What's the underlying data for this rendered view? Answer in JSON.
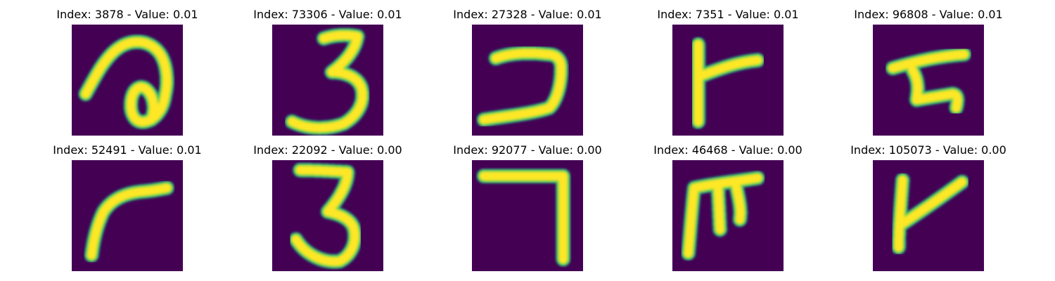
{
  "colors": {
    "background": "#440154",
    "stroke_edge": "#22a884",
    "stroke_mid": "#7ad151",
    "stroke_core": "#fde725"
  },
  "panels": [
    {
      "title": "Index: 3878 - Value: 0.01",
      "glyph": "g0"
    },
    {
      "title": "Index: 73306 - Value: 0.01",
      "glyph": "g1"
    },
    {
      "title": "Index: 27328 - Value: 0.01",
      "glyph": "g2"
    },
    {
      "title": "Index: 7351 - Value: 0.01",
      "glyph": "g3"
    },
    {
      "title": "Index: 96808 - Value: 0.01",
      "glyph": "g4"
    },
    {
      "title": "Index: 52491 - Value: 0.01",
      "glyph": "g5"
    },
    {
      "title": "Index: 22092 - Value: 0.00",
      "glyph": "g6"
    },
    {
      "title": "Index: 92077 - Value: 0.00",
      "glyph": "g7"
    },
    {
      "title": "Index: 46468 - Value: 0.00",
      "glyph": "g8"
    },
    {
      "title": "Index: 105073 - Value: 0.00",
      "glyph": "g9"
    }
  ]
}
